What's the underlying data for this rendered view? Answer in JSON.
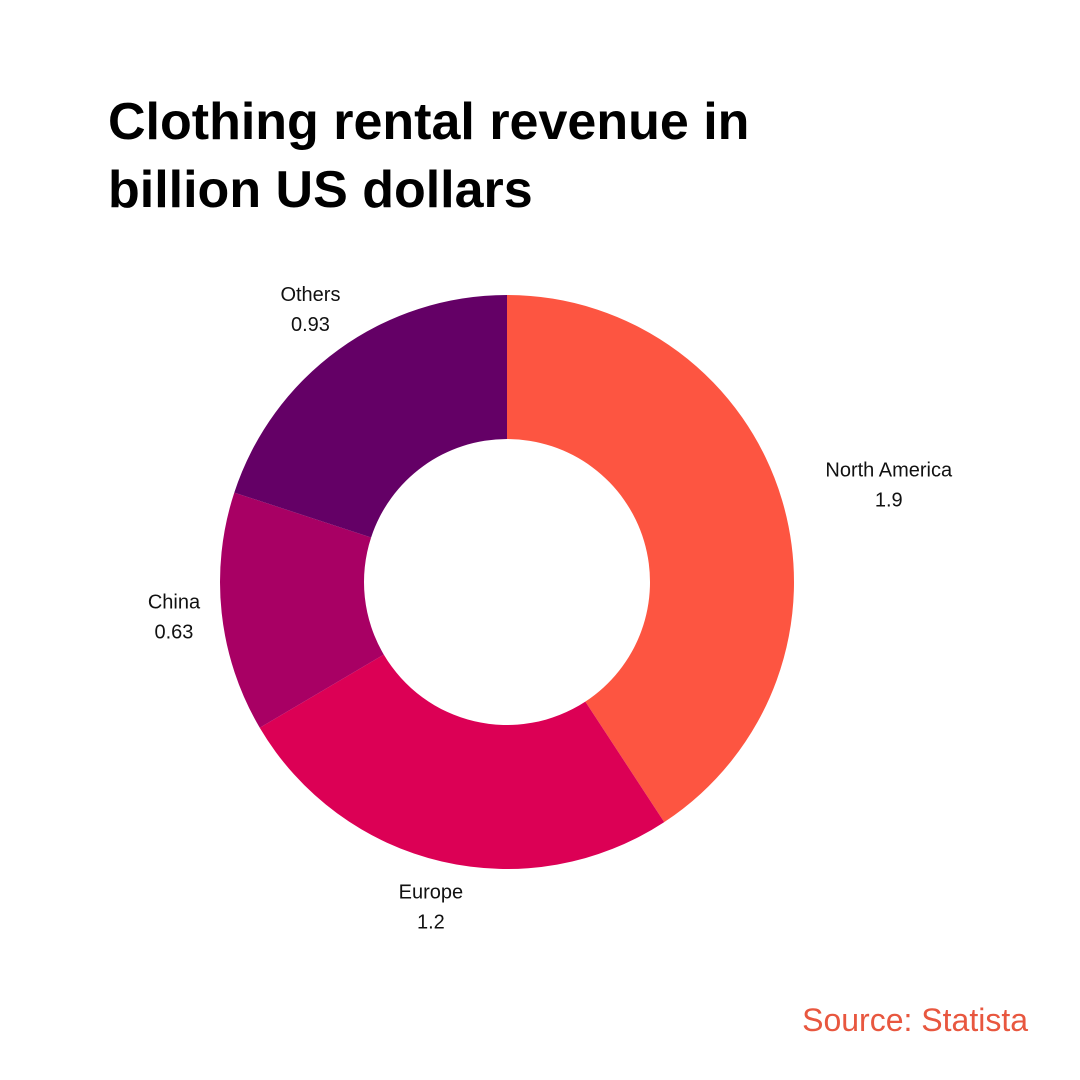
{
  "chart_data": {
    "type": "donut",
    "title": "Clothing rental revenue in billion US dollars",
    "categories": [
      "North America",
      "Europe",
      "China",
      "Others"
    ],
    "values": [
      1.9,
      1.2,
      0.63,
      0.93
    ],
    "colors": [
      "#fd5541",
      "#dc0055",
      "#a80064",
      "#640066"
    ],
    "source": "Source: Statista"
  }
}
